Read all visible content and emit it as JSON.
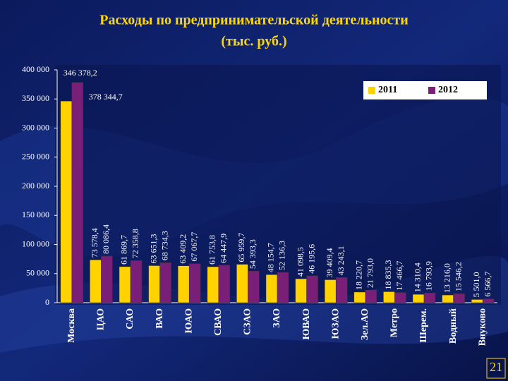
{
  "chart_data": {
    "type": "bar",
    "title": "Расходы по предпринимательской деятельности",
    "subtitle": "(тыс. руб.)",
    "categories": [
      "Москва",
      "ЦАО",
      "САО",
      "ВАО",
      "ЮАО",
      "СВАО",
      "СЗАО",
      "ЗАО",
      "ЮВАО",
      "ЮЗАО",
      "Зел.АО",
      "Метро",
      "Шерем.",
      "Водный",
      "Внуково"
    ],
    "series": [
      {
        "name": "2011",
        "color": "#ffd200",
        "values": [
          346378.2,
          73578.4,
          61869.7,
          63651.3,
          63409.2,
          61753.8,
          65959.7,
          48154.7,
          41098.5,
          39409.4,
          18220.7,
          18835.3,
          14310.4,
          13216.0,
          5501.0
        ],
        "value_labels": [
          "346 378,2",
          "73 578,4",
          "61 869,7",
          "63 651,3",
          "63 409,2",
          "61 753,8",
          "65 959,7",
          "48 154,7",
          "41 098,5",
          "39 409,4",
          "18 220,7",
          "18 835,3",
          "14 310,4",
          "13 216,0",
          "5 501,0"
        ]
      },
      {
        "name": "2012",
        "color": "#7a1f78",
        "values": [
          378344.7,
          80086.4,
          72358.8,
          68734.3,
          67067.7,
          64447.9,
          54393.3,
          52136.3,
          46195.6,
          43243.1,
          21793.0,
          17466.7,
          16793.9,
          15546.2,
          6566.7
        ],
        "value_labels": [
          "378 344,7",
          "80 086,4",
          "72 358,8",
          "68 734,3",
          "67 067,7",
          "64 447,9",
          "54 393,3",
          "52 136,3",
          "46 195,6",
          "43 243,1",
          "21 793,0",
          "17 466,7",
          "16 793,9",
          "15 546,2",
          "6 566,7"
        ]
      }
    ],
    "ylim": [
      0,
      400000
    ],
    "yticks": [
      0,
      {
        "value": 50000,
        "label": "50 000"
      },
      {
        "value": 100000,
        "label": "100 000"
      },
      {
        "value": 150000,
        "label": "150 000"
      },
      {
        "value": 200000,
        "label": "200 000"
      },
      {
        "value": 250000,
        "label": "250 000"
      },
      {
        "value": 300000,
        "label": "300 000"
      },
      {
        "value": 350000,
        "label": "350 000"
      },
      {
        "value": 400000,
        "label": "400 000"
      }
    ],
    "legend": "top-right"
  },
  "page_number": "21"
}
